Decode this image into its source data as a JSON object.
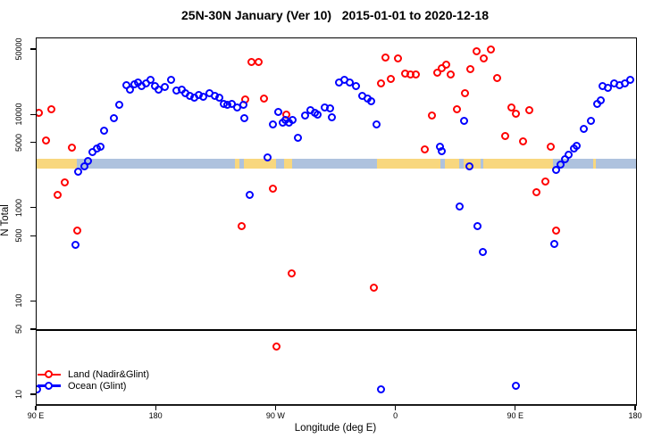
{
  "title": "25N-30N January (Ver 10)   2015-01-01 to 2020-12-18",
  "legend": {
    "items": [
      {
        "label": "Land (Nadir&Glint)",
        "color": "#FF0000"
      },
      {
        "label": "Ocean (Glint)",
        "color": "#0000FF"
      }
    ]
  },
  "chart_data": {
    "type": "scatter",
    "title": "25N-30N January (Ver 10)   2015-01-01 to 2020-12-18",
    "xlabel": "Longitude (deg E)",
    "ylabel": "N Total",
    "x_axis": {
      "note": "degrees east of 90E along a 450-degree wrapped longitude axis",
      "range": [
        0,
        450
      ],
      "ticks": [
        0,
        90,
        180,
        270,
        360,
        450
      ],
      "tick_labels": [
        "90 E",
        "180",
        "90 W",
        "0",
        "90 E",
        "180"
      ]
    },
    "y_axis": {
      "scale": "log10",
      "range": [
        8,
        68000
      ],
      "ticks": [
        10,
        50,
        100,
        500,
        1000,
        5000,
        10000,
        50000
      ],
      "tick_labels": [
        "10",
        "50",
        "100",
        "500",
        "1000",
        "5000",
        "10000",
        "50000"
      ]
    },
    "grid": false,
    "legend_position": "bottom-left",
    "hline_y": 50,
    "coast_band": {
      "n_range": [
        2680,
        3420
      ],
      "colors": {
        "land": "#F8D77E",
        "ocean": "#AEC2DE"
      },
      "segments": [
        {
          "from": 0,
          "to": 30,
          "type": "land"
        },
        {
          "from": 30,
          "to": 148.7,
          "type": "ocean"
        },
        {
          "from": 148.7,
          "to": 152.5,
          "type": "land"
        },
        {
          "from": 152.5,
          "to": 155.5,
          "type": "ocean"
        },
        {
          "from": 155.5,
          "to": 179.5,
          "type": "land"
        },
        {
          "from": 179.5,
          "to": 185.5,
          "type": "ocean"
        },
        {
          "from": 185.5,
          "to": 191.5,
          "type": "land"
        },
        {
          "from": 191.5,
          "to": 255.6,
          "type": "ocean"
        },
        {
          "from": 255.6,
          "to": 303.2,
          "type": "land"
        },
        {
          "from": 303.2,
          "to": 306.2,
          "type": "ocean"
        },
        {
          "from": 306.2,
          "to": 317.3,
          "type": "land"
        },
        {
          "from": 317.3,
          "to": 320.3,
          "type": "ocean"
        },
        {
          "from": 320.3,
          "to": 333.5,
          "type": "land"
        },
        {
          "from": 333.5,
          "to": 335.5,
          "type": "ocean"
        },
        {
          "from": 335.5,
          "to": 387.9,
          "type": "land"
        },
        {
          "from": 387.9,
          "to": 417.9,
          "type": "ocean"
        },
        {
          "from": 417.9,
          "to": 419.9,
          "type": "land"
        },
        {
          "from": 419.9,
          "to": 450,
          "type": "ocean"
        }
      ]
    },
    "series": [
      {
        "name": "Land (Nadir&Glint)",
        "color": "#FF0000",
        "points": [
          [
            2.2,
            10500
          ],
          [
            11.2,
            11500
          ],
          [
            7.4,
            5300
          ],
          [
            26.8,
            4450
          ],
          [
            21.2,
            1900
          ],
          [
            16.1,
            1380
          ],
          [
            30.6,
            580
          ],
          [
            161.9,
            36800
          ],
          [
            166.8,
            36800
          ],
          [
            156.7,
            14700
          ],
          [
            170.8,
            15000
          ],
          [
            187.5,
            10000
          ],
          [
            177.9,
            1630
          ],
          [
            154.0,
            645
          ],
          [
            180.3,
            33
          ],
          [
            192.0,
            200
          ],
          [
            259.0,
            21900
          ],
          [
            266.1,
            24100
          ],
          [
            262.3,
            41100
          ],
          [
            271.4,
            40500
          ],
          [
            277.2,
            27500
          ],
          [
            281.2,
            27200
          ],
          [
            285.3,
            27200
          ],
          [
            300.9,
            28500
          ],
          [
            304.7,
            31500
          ],
          [
            307.6,
            34200
          ],
          [
            310.9,
            27200
          ],
          [
            325.9,
            30600
          ],
          [
            330.8,
            48200
          ],
          [
            336.0,
            40200
          ],
          [
            341.1,
            50500
          ],
          [
            346.0,
            24900
          ],
          [
            321.9,
            17200
          ],
          [
            315.9,
            11500
          ],
          [
            296.9,
            9800
          ],
          [
            356.7,
            12000
          ],
          [
            359.8,
            10200
          ],
          [
            370.5,
            11300
          ],
          [
            351.8,
            5900
          ],
          [
            365.6,
            5150
          ],
          [
            291.9,
            4290
          ],
          [
            386.2,
            4550
          ],
          [
            382.2,
            1940
          ],
          [
            375.4,
            1480
          ],
          [
            390.2,
            580
          ],
          [
            253.3,
            141
          ]
        ]
      },
      {
        "name": "Ocean (Glint)",
        "color": "#0000FF",
        "points": [
          [
            31.3,
            2470
          ],
          [
            36.4,
            2820
          ],
          [
            38.6,
            3200
          ],
          [
            42.4,
            3980
          ],
          [
            45.3,
            4350
          ],
          [
            48.0,
            4550
          ],
          [
            50.9,
            6760
          ],
          [
            58.1,
            9260
          ],
          [
            62.1,
            12900
          ],
          [
            67.6,
            20800
          ],
          [
            70.3,
            18600
          ],
          [
            73.7,
            21300
          ],
          [
            76.6,
            22300
          ],
          [
            79.2,
            20300
          ],
          [
            82.2,
            21700
          ],
          [
            85.9,
            23500
          ],
          [
            89.3,
            20200
          ],
          [
            92.2,
            18600
          ],
          [
            96.6,
            20000
          ],
          [
            101.6,
            23500
          ],
          [
            105.6,
            18300
          ],
          [
            109.0,
            18600
          ],
          [
            112.3,
            17000
          ],
          [
            115.4,
            16100
          ],
          [
            119.0,
            15200
          ],
          [
            122.1,
            16300
          ],
          [
            125.7,
            15500
          ],
          [
            130.1,
            17200
          ],
          [
            133.9,
            15800
          ],
          [
            137.3,
            15200
          ],
          [
            140.6,
            13200
          ],
          [
            143.5,
            12800
          ],
          [
            146.7,
            13200
          ],
          [
            150.7,
            12000
          ],
          [
            155.6,
            12800
          ],
          [
            156.2,
            9100
          ],
          [
            160.3,
            1370
          ],
          [
            173.4,
            3490
          ],
          [
            177.5,
            7840
          ],
          [
            181.5,
            10700
          ],
          [
            185.3,
            8300
          ],
          [
            186.8,
            8800
          ],
          [
            189.8,
            8300
          ],
          [
            192.7,
            8800
          ],
          [
            196.4,
            5680
          ],
          [
            202.1,
            9770
          ],
          [
            206.1,
            11100
          ],
          [
            209.2,
            10400
          ],
          [
            211.4,
            10100
          ],
          [
            216.5,
            12000
          ],
          [
            220.6,
            11600
          ],
          [
            221.8,
            9300
          ],
          [
            227.3,
            22300
          ],
          [
            231.7,
            23500
          ],
          [
            235.5,
            22300
          ],
          [
            240.0,
            20200
          ],
          [
            245.1,
            16100
          ],
          [
            248.9,
            14800
          ],
          [
            251.8,
            14000
          ],
          [
            255.6,
            7900
          ],
          [
            303.2,
            4550
          ],
          [
            304.7,
            4050
          ],
          [
            321.0,
            8700
          ],
          [
            325.5,
            2800
          ],
          [
            318.1,
            1030
          ],
          [
            331.5,
            640
          ],
          [
            335.3,
            336
          ],
          [
            388.9,
            410
          ],
          [
            390.6,
            2560
          ],
          [
            394.0,
            2940
          ],
          [
            396.9,
            3330
          ],
          [
            400.0,
            3770
          ],
          [
            404.0,
            4350
          ],
          [
            405.8,
            4620
          ],
          [
            411.2,
            7060
          ],
          [
            416.3,
            8600
          ],
          [
            421.4,
            13200
          ],
          [
            423.7,
            14200
          ],
          [
            425.3,
            20500
          ],
          [
            429.3,
            19300
          ],
          [
            434.1,
            21900
          ],
          [
            438.1,
            20900
          ],
          [
            441.9,
            21600
          ],
          [
            445.9,
            23800
          ],
          [
            259.0,
            11.5
          ],
          [
            359.8,
            12.6
          ],
          [
            29.3,
            404
          ],
          [
            0.5,
            11.5
          ]
        ]
      }
    ]
  }
}
